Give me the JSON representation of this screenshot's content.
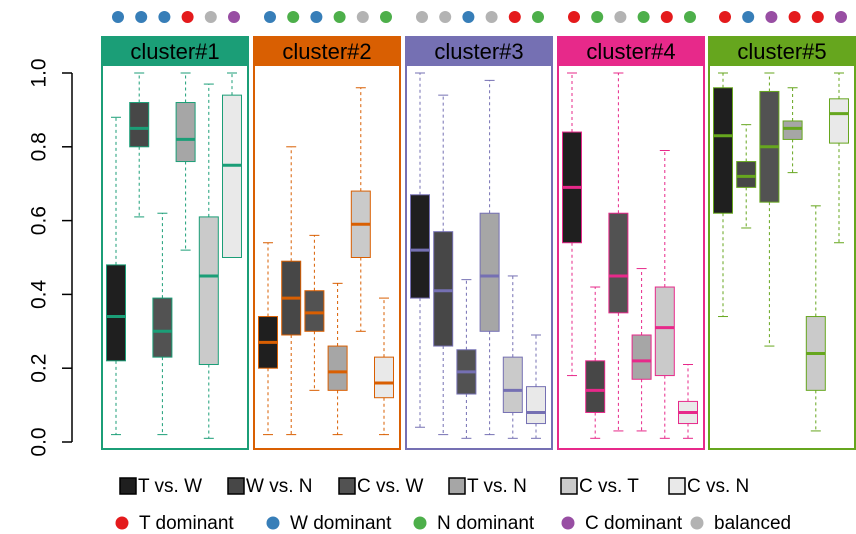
{
  "chart_data": {
    "type": "box",
    "ylim": [
      0,
      1
    ],
    "yticks": [
      {
        "value": 0,
        "label": "0.0"
      },
      0.2,
      0.4,
      0.6,
      0.8,
      {
        "value": 1,
        "label": "1.0"
      }
    ],
    "series": [
      {
        "name": "T vs. W",
        "color": "#1f1f1f"
      },
      {
        "name": "W vs. N",
        "color": "#474747"
      },
      {
        "name": "C vs. W",
        "color": "#525252"
      },
      {
        "name": "T vs. N",
        "color": "#a6a6a6"
      },
      {
        "name": "C vs. T",
        "color": "#cacaca"
      },
      {
        "name": "C vs. N",
        "color": "#e9e9e9"
      }
    ],
    "dominance_legend": [
      {
        "name": "T dominant",
        "color": "#e41a1c"
      },
      {
        "name": "W dominant",
        "color": "#377eb8"
      },
      {
        "name": "N dominant",
        "color": "#4daf4a"
      },
      {
        "name": "C dominant",
        "color": "#984ea3"
      },
      {
        "name": "balanced",
        "color": "#b3b3b3"
      }
    ],
    "panels": [
      {
        "title": "cluster#1",
        "color": "#1b9e77",
        "dots": [
          "#377eb8",
          "#377eb8",
          "#377eb8",
          "#e41a1c",
          "#b3b3b3",
          "#984ea3"
        ],
        "boxes": [
          [
            0.02,
            0.22,
            0.34,
            0.48,
            0.88
          ],
          [
            0.61,
            0.8,
            0.85,
            0.92,
            1.0
          ],
          [
            0.02,
            0.23,
            0.3,
            0.39,
            0.62
          ],
          [
            0.52,
            0.76,
            0.82,
            0.92,
            1.0
          ],
          [
            0.01,
            0.21,
            0.45,
            0.61,
            0.97
          ],
          [
            0.5,
            0.5,
            0.75,
            0.94,
            1.0
          ]
        ]
      },
      {
        "title": "cluster#2",
        "color": "#d95f02",
        "dots": [
          "#377eb8",
          "#4daf4a",
          "#377eb8",
          "#4daf4a",
          "#b3b3b3",
          "#4daf4a"
        ],
        "boxes": [
          [
            0.02,
            0.2,
            0.27,
            0.34,
            0.54
          ],
          [
            0.02,
            0.29,
            0.39,
            0.49,
            0.8
          ],
          [
            0.14,
            0.3,
            0.35,
            0.41,
            0.56
          ],
          [
            0.02,
            0.14,
            0.19,
            0.26,
            0.43
          ],
          [
            0.3,
            0.5,
            0.59,
            0.68,
            0.96
          ],
          [
            0.02,
            0.12,
            0.16,
            0.23,
            0.39
          ]
        ]
      },
      {
        "title": "cluster#3",
        "color": "#7570b3",
        "dots": [
          "#b3b3b3",
          "#b3b3b3",
          "#377eb8",
          "#b3b3b3",
          "#e41a1c",
          "#4daf4a"
        ],
        "boxes": [
          [
            0.04,
            0.39,
            0.52,
            0.67,
            1.0
          ],
          [
            0.02,
            0.26,
            0.41,
            0.57,
            0.94
          ],
          [
            0.01,
            0.13,
            0.19,
            0.25,
            0.44
          ],
          [
            0.02,
            0.3,
            0.45,
            0.62,
            0.98
          ],
          [
            0.01,
            0.08,
            0.14,
            0.23,
            0.45
          ],
          [
            0.01,
            0.05,
            0.08,
            0.15,
            0.29
          ]
        ]
      },
      {
        "title": "cluster#4",
        "color": "#e7298a",
        "dots": [
          "#e41a1c",
          "#4daf4a",
          "#b3b3b3",
          "#4daf4a",
          "#e41a1c",
          "#4daf4a"
        ],
        "boxes": [
          [
            0.18,
            0.54,
            0.69,
            0.84,
            1.0
          ],
          [
            0.01,
            0.08,
            0.14,
            0.22,
            0.42
          ],
          [
            0.03,
            0.35,
            0.45,
            0.62,
            1.0
          ],
          [
            0.03,
            0.17,
            0.22,
            0.29,
            0.47
          ],
          [
            0.01,
            0.18,
            0.31,
            0.42,
            0.79
          ],
          [
            0.01,
            0.05,
            0.08,
            0.11,
            0.21
          ]
        ]
      },
      {
        "title": "cluster#5",
        "color": "#66a61e",
        "dots": [
          "#e41a1c",
          "#377eb8",
          "#984ea3",
          "#e41a1c",
          "#e41a1c",
          "#984ea3"
        ],
        "boxes": [
          [
            0.34,
            0.62,
            0.83,
            0.96,
            1.0
          ],
          [
            0.58,
            0.69,
            0.72,
            0.76,
            0.86
          ],
          [
            0.26,
            0.65,
            0.8,
            0.95,
            1.0
          ],
          [
            0.73,
            0.82,
            0.85,
            0.87,
            0.96
          ],
          [
            0.03,
            0.14,
            0.24,
            0.34,
            0.64
          ],
          [
            0.54,
            0.81,
            0.89,
            0.93,
            1.0
          ]
        ]
      }
    ]
  }
}
